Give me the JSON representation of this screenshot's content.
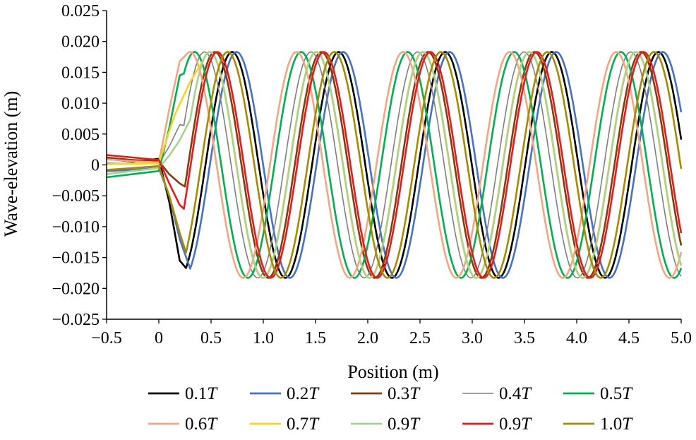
{
  "chart_data": {
    "type": "line",
    "title": "",
    "xlabel": "Position (m)",
    "ylabel": "Wave-elevation (m)",
    "xlim": [
      -0.5,
      5.0
    ],
    "ylim": [
      -0.025,
      0.025
    ],
    "xticks": [
      "−0.5",
      "0",
      "0.5",
      "1.0",
      "1.5",
      "2.0",
      "2.5",
      "3.0",
      "3.5",
      "4.0",
      "4.5",
      "5.0"
    ],
    "xtick_values": [
      -0.5,
      0,
      0.5,
      1.0,
      1.5,
      2.0,
      2.5,
      3.0,
      3.5,
      4.0,
      4.5,
      5.0
    ],
    "yticks": [
      "0.025",
      "0.020",
      "0.015",
      "0.010",
      "0.005",
      "0",
      "−0.005",
      "−0.010",
      "−0.015",
      "−0.020",
      "−0.025"
    ],
    "ytick_values": [
      0.025,
      0.02,
      0.015,
      0.01,
      0.005,
      0,
      -0.005,
      -0.01,
      -0.015,
      -0.02,
      -0.025
    ],
    "grid": false,
    "legend_position": "bottom",
    "amplitude": 0.0183,
    "wavelength": 1.02,
    "series": [
      {
        "name": "0.1",
        "suffix": "T",
        "color": "#000000",
        "phase": 0.2,
        "ramp": [
          [
            -0.5,
            0.001
          ],
          [
            -0.25,
            0.0005
          ],
          [
            0,
            0.001
          ],
          [
            0.1,
            -0.006
          ],
          [
            0.2,
            -0.0155
          ],
          [
            0.26,
            -0.0167
          ]
        ]
      },
      {
        "name": "0.2",
        "suffix": "T",
        "color": "#4472C4",
        "phase": 0.4,
        "ramp": [
          [
            -0.5,
            -0.001
          ],
          [
            -0.25,
            -0.0008
          ],
          [
            0,
            -0.0005
          ],
          [
            0.1,
            -0.005
          ],
          [
            0.2,
            -0.012
          ],
          [
            0.3,
            -0.0168
          ]
        ]
      },
      {
        "name": "0.3",
        "suffix": "T",
        "color": "#843C0C",
        "phase": 0.6,
        "ramp": [
          [
            -0.5,
            0.0012
          ],
          [
            -0.25,
            0.0008
          ],
          [
            0,
            0.0006
          ],
          [
            0.1,
            -0.0015
          ],
          [
            0.2,
            -0.003
          ],
          [
            0.25,
            -0.0035
          ]
        ]
      },
      {
        "name": "0.4",
        "suffix": "T",
        "color": "#7F7F7F",
        "phase": 0.8,
        "ramp": [
          [
            -0.5,
            0.0003
          ],
          [
            -0.25,
            0.0002
          ],
          [
            0,
            0.0002
          ],
          [
            0.1,
            0.003
          ],
          [
            0.2,
            0.0065
          ],
          [
            0.24,
            0.0064
          ]
        ]
      },
      {
        "name": "0.5",
        "suffix": "T",
        "color": "#00B050",
        "phase": 1.0,
        "ramp": [
          [
            -0.5,
            -0.002
          ],
          [
            -0.25,
            -0.0015
          ],
          [
            0,
            -0.001
          ],
          [
            0.1,
            0.006
          ],
          [
            0.2,
            0.0145
          ],
          [
            0.24,
            0.0148
          ]
        ]
      },
      {
        "name": "0.6",
        "suffix": "T",
        "color": "#F4A582",
        "phase": 1.2,
        "ramp": [
          [
            -0.5,
            0.0009
          ],
          [
            -0.25,
            0.0006
          ],
          [
            0,
            0.0004
          ],
          [
            0.1,
            0.009
          ],
          [
            0.2,
            0.0168
          ],
          [
            0.26,
            0.0178
          ]
        ]
      },
      {
        "name": "0.7",
        "suffix": "T",
        "color": "#FFD21F",
        "phase": 0.4,
        "ramp": [
          [
            -0.5,
            0.0001
          ],
          [
            -0.25,
            0.0002
          ],
          [
            0,
            0.0003
          ],
          [
            0.15,
            0.008
          ],
          [
            0.3,
            0.0135
          ],
          [
            0.42,
            0.0168
          ]
        ]
      },
      {
        "name": "0.9",
        "suffix": "T",
        "color": "#A9D18E",
        "phase": 0.6,
        "ramp": [
          [
            -0.5,
            -0.0015
          ],
          [
            -0.25,
            -0.001
          ],
          [
            0,
            -0.0005
          ],
          [
            0.1,
            0.0015
          ],
          [
            0.2,
            0.004
          ],
          [
            0.3,
            0.0073
          ]
        ]
      },
      {
        "name": "0.9",
        "suffix": "T",
        "color": "#E8191A",
        "phase": 0.8,
        "ramp": [
          [
            -0.5,
            0.0016
          ],
          [
            -0.25,
            0.0012
          ],
          [
            0,
            0.0008
          ],
          [
            0.1,
            -0.003
          ],
          [
            0.2,
            -0.0065
          ],
          [
            0.24,
            -0.0071
          ]
        ]
      },
      {
        "name": "1.0",
        "suffix": "T",
        "color": "#A88A00",
        "phase": 1.0,
        "ramp": [
          [
            -0.5,
            -0.0008
          ],
          [
            -0.25,
            -0.0005
          ],
          [
            0,
            -0.0002
          ],
          [
            0.1,
            -0.005
          ],
          [
            0.2,
            -0.011
          ],
          [
            0.26,
            -0.0142
          ]
        ]
      }
    ]
  }
}
